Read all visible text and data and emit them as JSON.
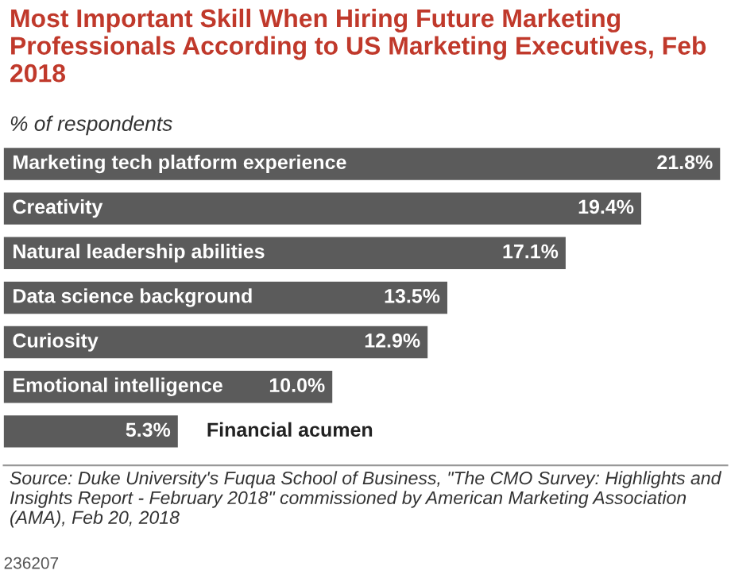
{
  "chart_data": {
    "type": "bar",
    "orientation": "horizontal",
    "title": "Most Important Skill When Hiring Future Marketing Professionals According to US Marketing Executives, Feb 2018",
    "subtitle": "% of respondents",
    "categories": [
      "Marketing tech platform experience",
      "Creativity",
      "Natural leadership abilities",
      "Data science background",
      "Curiosity",
      "Emotional intelligence",
      "Financial acumen"
    ],
    "values": [
      21.8,
      19.4,
      17.1,
      13.5,
      12.9,
      10.0,
      5.3
    ],
    "value_labels": [
      "21.8%",
      "19.4%",
      "17.1%",
      "13.5%",
      "12.9%",
      "10.0%",
      "5.3%"
    ],
    "color": "#5b5b5b",
    "annotations": [
      "Source: Duke University's Fuqua School of Business, \"The CMO Survey: Highlights and Insights Report - February 2018\" commissioned by American Marketing Association (AMA), Feb 20, 2018",
      "236207"
    ]
  }
}
